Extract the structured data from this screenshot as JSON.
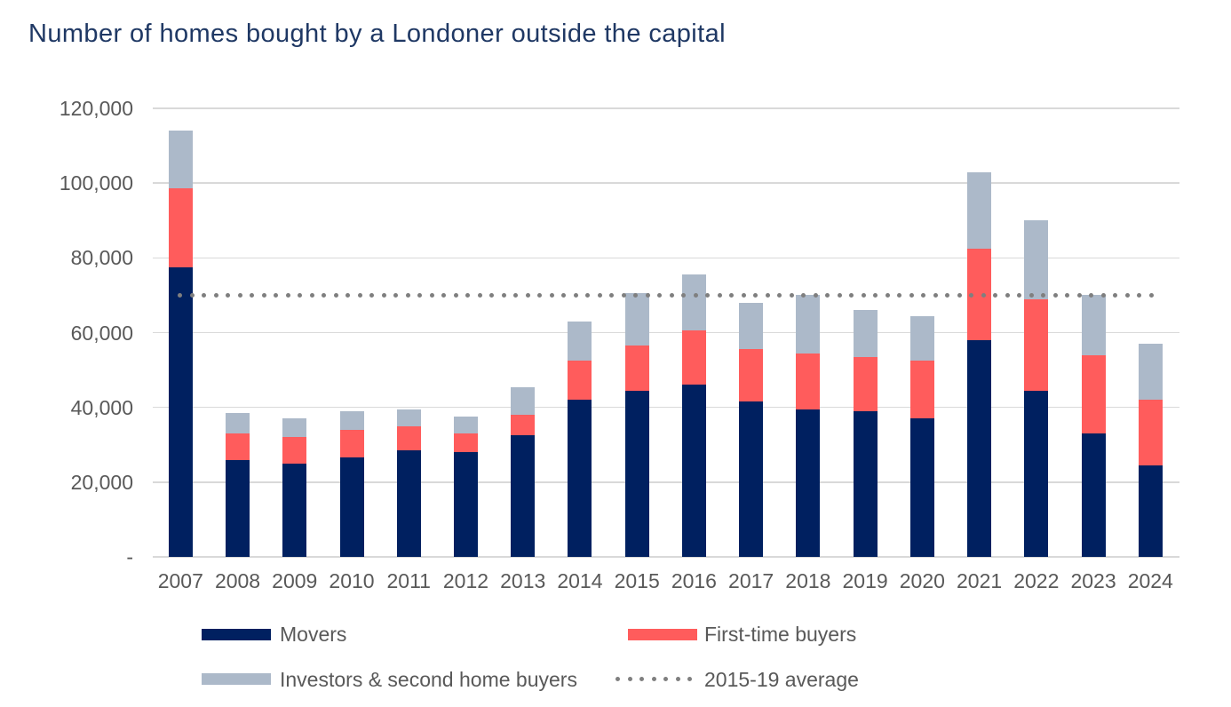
{
  "title": "Number of homes bought by a Londoner outside the capital",
  "colors": {
    "movers": "#002060",
    "first_time_buyers": "#ff5c5c",
    "investors": "#acb9c9",
    "average_line": "#7f7f7f",
    "gridline": "#d9d9d9",
    "axis_text": "#595959",
    "title_text": "#1f3864"
  },
  "y_axis": {
    "ticks": [
      {
        "label": "120,000",
        "value": 120000
      },
      {
        "label": "100,000",
        "value": 100000
      },
      {
        "label": "80,000",
        "value": 80000
      },
      {
        "label": "60,000",
        "value": 60000
      },
      {
        "label": "40,000",
        "value": 40000
      },
      {
        "label": "20,000",
        "value": 20000
      },
      {
        "label": "-",
        "value": 0
      }
    ]
  },
  "legend": {
    "movers": "Movers",
    "first_time": "First-time buyers",
    "investors": "Investors & second home buyers",
    "average": "2015-19 average"
  },
  "chart_data": {
    "type": "bar",
    "stacked": true,
    "title": "Number of homes bought by a Londoner outside the capital",
    "xlabel": "",
    "ylabel": "",
    "ylim": [
      0,
      120000
    ],
    "grid": "horizontal",
    "legend_position": "bottom",
    "categories": [
      "2007",
      "2008",
      "2009",
      "2010",
      "2011",
      "2012",
      "2013",
      "2014",
      "2015",
      "2016",
      "2017",
      "2018",
      "2019",
      "2020",
      "2021",
      "2022",
      "2023",
      "2024"
    ],
    "series": [
      {
        "name": "Movers",
        "color_key": "movers",
        "values": [
          77500,
          26000,
          25000,
          26500,
          28500,
          28000,
          32500,
          42000,
          44500,
          46000,
          41500,
          39500,
          39000,
          37000,
          58000,
          44500,
          33000,
          24500
        ]
      },
      {
        "name": "First-time buyers",
        "color_key": "first_time_buyers",
        "values": [
          21000,
          7000,
          7000,
          7500,
          6500,
          5000,
          5500,
          10500,
          12000,
          14500,
          14000,
          15000,
          14500,
          15500,
          24500,
          24500,
          21000,
          17500
        ]
      },
      {
        "name": "Investors & second home buyers",
        "color_key": "investors",
        "values": [
          15500,
          5500,
          5000,
          5000,
          4500,
          4500,
          7500,
          10500,
          14000,
          15000,
          12500,
          15500,
          12500,
          12000,
          20500,
          21000,
          16000,
          15000
        ]
      }
    ],
    "totals": [
      114000,
      38500,
      37000,
      39000,
      39500,
      37500,
      45500,
      63000,
      70500,
      75500,
      68000,
      70000,
      66000,
      64500,
      103000,
      90000,
      70000,
      57000
    ],
    "average_line": {
      "name": "2015-19 average",
      "value": 70000,
      "style": "dotted",
      "color_key": "average_line"
    }
  }
}
